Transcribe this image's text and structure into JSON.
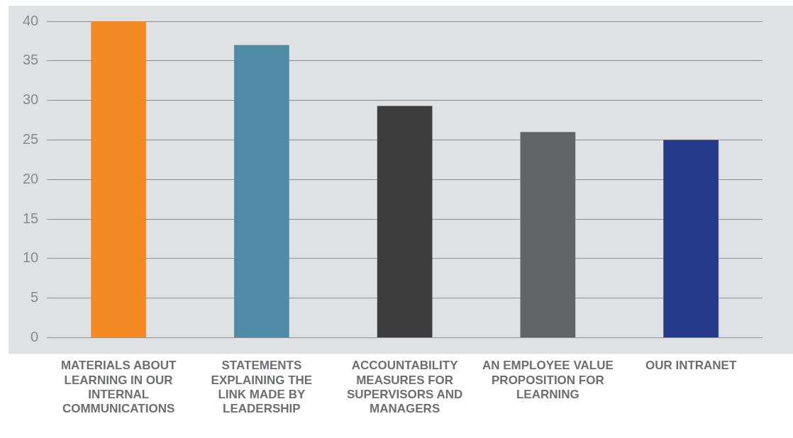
{
  "chart_data": {
    "type": "bar",
    "categories": [
      "MATERIALS ABOUT LEARNING IN OUR INTERNAL COMMUNICATIONS",
      "STATEMENTS EXPLAINING THE LINK MADE BY LEADERSHIP",
      "ACCOUNTABILITY MEASURES FOR SUPERVISORS AND MANAGERS",
      "AN EMPLOYEE VALUE PROPOSITION FOR LEARNING",
      "OUR INTRANET"
    ],
    "values": [
      40,
      37,
      29.3,
      26,
      25
    ],
    "colors": [
      "#f58a24",
      "#508ba8",
      "#3d3d3d",
      "#636467",
      "#243b8c"
    ],
    "ylim": [
      0,
      40
    ],
    "yticks": [
      0,
      5,
      10,
      15,
      20,
      25,
      30,
      35,
      40
    ],
    "grid": "y",
    "legend": false
  }
}
